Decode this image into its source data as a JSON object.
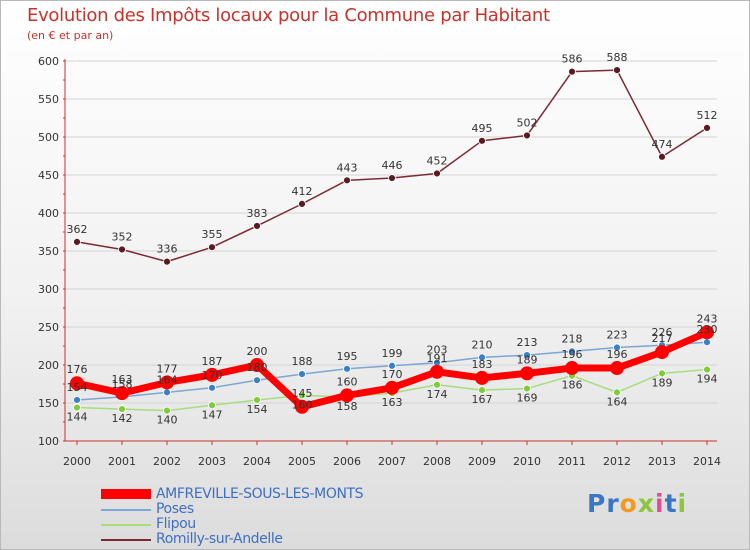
{
  "title": "Evolution des Impôts locaux pour la Commune par Habitant",
  "subtitle": "(en € et par an)",
  "logo": {
    "text": "Proxiti",
    "letter_colors": [
      "#3a76c4",
      "#3a76c4",
      "#f39a1e",
      "#8cc63e",
      "#e04e8f",
      "#3a76c4",
      "#8cc63e"
    ]
  },
  "colors": {
    "axis": "#c8322b",
    "grid": "#d4d4d4",
    "value_label": "#333333"
  },
  "chart_data": {
    "type": "line",
    "title": "Evolution des Impôts locaux pour la Commune par Habitant",
    "subtitle": "(en € et par an)",
    "xlabel": "",
    "ylabel": "",
    "ylim": [
      100,
      600
    ],
    "yticks": [
      100,
      150,
      200,
      250,
      300,
      350,
      400,
      450,
      500,
      550,
      600
    ],
    "grid": "horizontal",
    "legend_position": "bottom-left",
    "categories": [
      "2000",
      "2001",
      "2002",
      "2003",
      "2004",
      "2005",
      "2006",
      "2007",
      "2008",
      "2009",
      "2010",
      "2011",
      "2012",
      "2013",
      "2014"
    ],
    "series": [
      {
        "name": "Romilly-sur-Andelle",
        "color": "#7b2a31",
        "marker": "#5a1a22",
        "values": [
          362,
          352,
          336,
          355,
          383,
          412,
          443,
          446,
          452,
          495,
          502,
          586,
          588,
          474,
          512
        ],
        "labels": [
          "362",
          "352",
          "336",
          "355",
          "383",
          "412",
          "443",
          "446",
          "452",
          "495",
          "502",
          "586",
          "588",
          "474",
          "512"
        ]
      },
      {
        "name": "Poses",
        "color": "#7aa7d3",
        "marker": "#3a7fc8",
        "values": [
          154,
          158,
          164,
          170,
          180,
          188,
          195,
          199,
          203,
          210,
          213,
          218,
          223,
          226,
          230
        ],
        "labels": [
          "154",
          "158",
          "164",
          "170",
          "180",
          "188",
          "195",
          "199",
          "203",
          "210",
          "213",
          "218",
          "223",
          "226",
          "230"
        ]
      },
      {
        "name": "Flipou",
        "color": "#a6dd7e",
        "marker": "#7fcc3a",
        "values": [
          144,
          142,
          140,
          147,
          154,
          160,
          158,
          163,
          174,
          167,
          169,
          186,
          164,
          189,
          194
        ],
        "labels": [
          "144",
          "142",
          "140",
          "147",
          "154",
          "160",
          "158",
          "163",
          "174",
          "167",
          "169",
          "186",
          "164",
          "189",
          "194"
        ]
      },
      {
        "name": "AMFREVILLE-SOUS-LES-MONTS",
        "color": "#ff0000",
        "marker": "#ff0000",
        "values": [
          176,
          163,
          177,
          187,
          200,
          145,
          160,
          170,
          191,
          183,
          189,
          196,
          196,
          217,
          243
        ],
        "labels": [
          "176",
          "163",
          "177",
          "187",
          "200",
          "145",
          "160",
          "170",
          "191",
          "183",
          "189",
          "196",
          "196",
          "217",
          "243"
        ]
      }
    ],
    "legend_order": [
      "AMFREVILLE-SOUS-LES-MONTS",
      "Poses",
      "Flipou",
      "Romilly-sur-Andelle"
    ]
  }
}
